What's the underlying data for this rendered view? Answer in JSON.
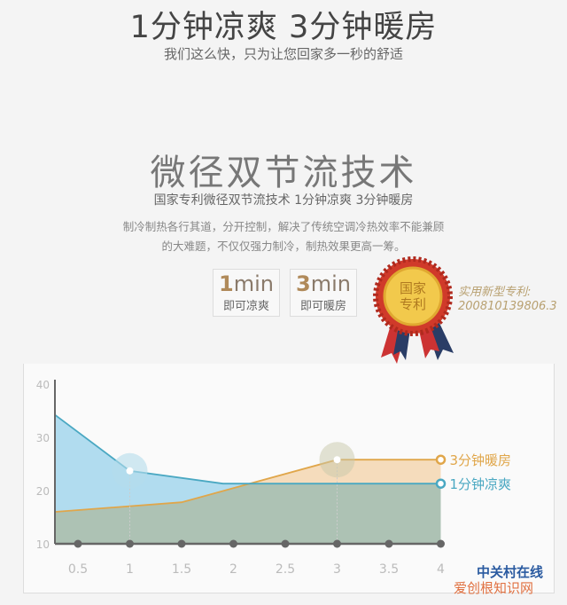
{
  "header": {
    "headline": "1分钟凉爽  3分钟暖房",
    "subtitle": "我们这么快，只为让您回家多一秒的舒适"
  },
  "section": {
    "title": "微径双节流技术",
    "tagline": "国家专利微径双节流技术   1分钟凉爽 3分钟暖房",
    "description_line1": "制冷制热各行其道，分开控制，解决了传统空调冷热效率不能兼顾",
    "description_line2": "的大难题，不仅仅强力制冷，制热效果更高一筹。"
  },
  "badges": [
    {
      "num": "1",
      "unit": "min",
      "label": "即可凉爽"
    },
    {
      "num": "3",
      "unit": "min",
      "label": "即可暖房"
    }
  ],
  "medal": {
    "text_line1": "国家",
    "text_line2": "专利"
  },
  "patent": {
    "label": "实用新型专利:",
    "number": "200810139806.3"
  },
  "watermark": {
    "line1": "中关村在线",
    "line2": "爱创根知识网"
  },
  "chart_data": {
    "type": "area",
    "x_ticks": [
      "0.5",
      "1",
      "1.5",
      "2",
      "2.5",
      "3",
      "3.5",
      "4"
    ],
    "y_ticks": [
      "10",
      "20",
      "30",
      "40"
    ],
    "ylim": [
      10,
      40
    ],
    "xlim": [
      0.28,
      4
    ],
    "grid": false,
    "series": [
      {
        "name": "3分钟暖房",
        "color": "#e0a64a",
        "points": [
          [
            0.28,
            16
          ],
          [
            1.5,
            17.8
          ],
          [
            3,
            25.8
          ],
          [
            4,
            25.8
          ]
        ],
        "highlight_x": 3
      },
      {
        "name": "1分钟凉爽",
        "color": "#4aa8c2",
        "points": [
          [
            0.28,
            34.2
          ],
          [
            1,
            23.7
          ],
          [
            1.9,
            21.3
          ],
          [
            4,
            21.3
          ]
        ],
        "highlight_x": 1
      }
    ]
  }
}
